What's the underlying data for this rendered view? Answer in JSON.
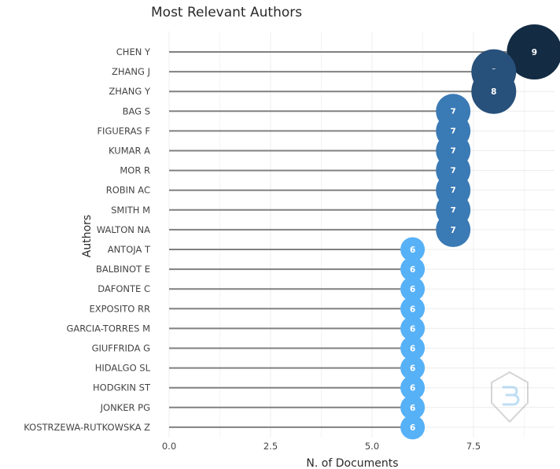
{
  "chart_data": {
    "type": "scatter",
    "title": "Most Relevant Authors",
    "xlabel": "N. of Documents",
    "ylabel": "Authors",
    "xlim": [
      0,
      9
    ],
    "x_ticks": [
      "0.0",
      "2.5",
      "5.0",
      "7.5"
    ],
    "x_tick_values": [
      0,
      2.5,
      5,
      7.5
    ],
    "grid": true,
    "categories": [
      "CHEN Y",
      "ZHANG J",
      "ZHANG Y",
      "BAG S",
      "FIGUERAS F",
      "KUMAR A",
      "MOR R",
      "ROBIN AC",
      "SMITH M",
      "WALTON NA",
      "ANTOJA T",
      "BALBINOT E",
      "DAFONTE C",
      "EXPOSITO RR",
      "GARCIA-TORRES M",
      "GIUFFRIDA G",
      "HIDALGO SL",
      "HODGKIN ST",
      "JONKER PG",
      "KOSTRZEWA-RUTKOWSKA Z"
    ],
    "values": [
      9,
      8,
      8,
      7,
      7,
      7,
      7,
      7,
      7,
      7,
      6,
      6,
      6,
      6,
      6,
      6,
      6,
      6,
      6,
      6
    ],
    "labels": [
      "9",
      "8",
      "8",
      "7",
      "7",
      "7",
      "7",
      "7",
      "7",
      "7",
      "6",
      "6",
      "6",
      "6",
      "6",
      "6",
      "6",
      "6",
      "6",
      "6"
    ],
    "colors": {
      "9": "#132B43",
      "8": "#27507a",
      "7": "#3a7ab5",
      "6": "#56B1F7",
      "stem": "#808080",
      "grid": "#ececec"
    }
  }
}
